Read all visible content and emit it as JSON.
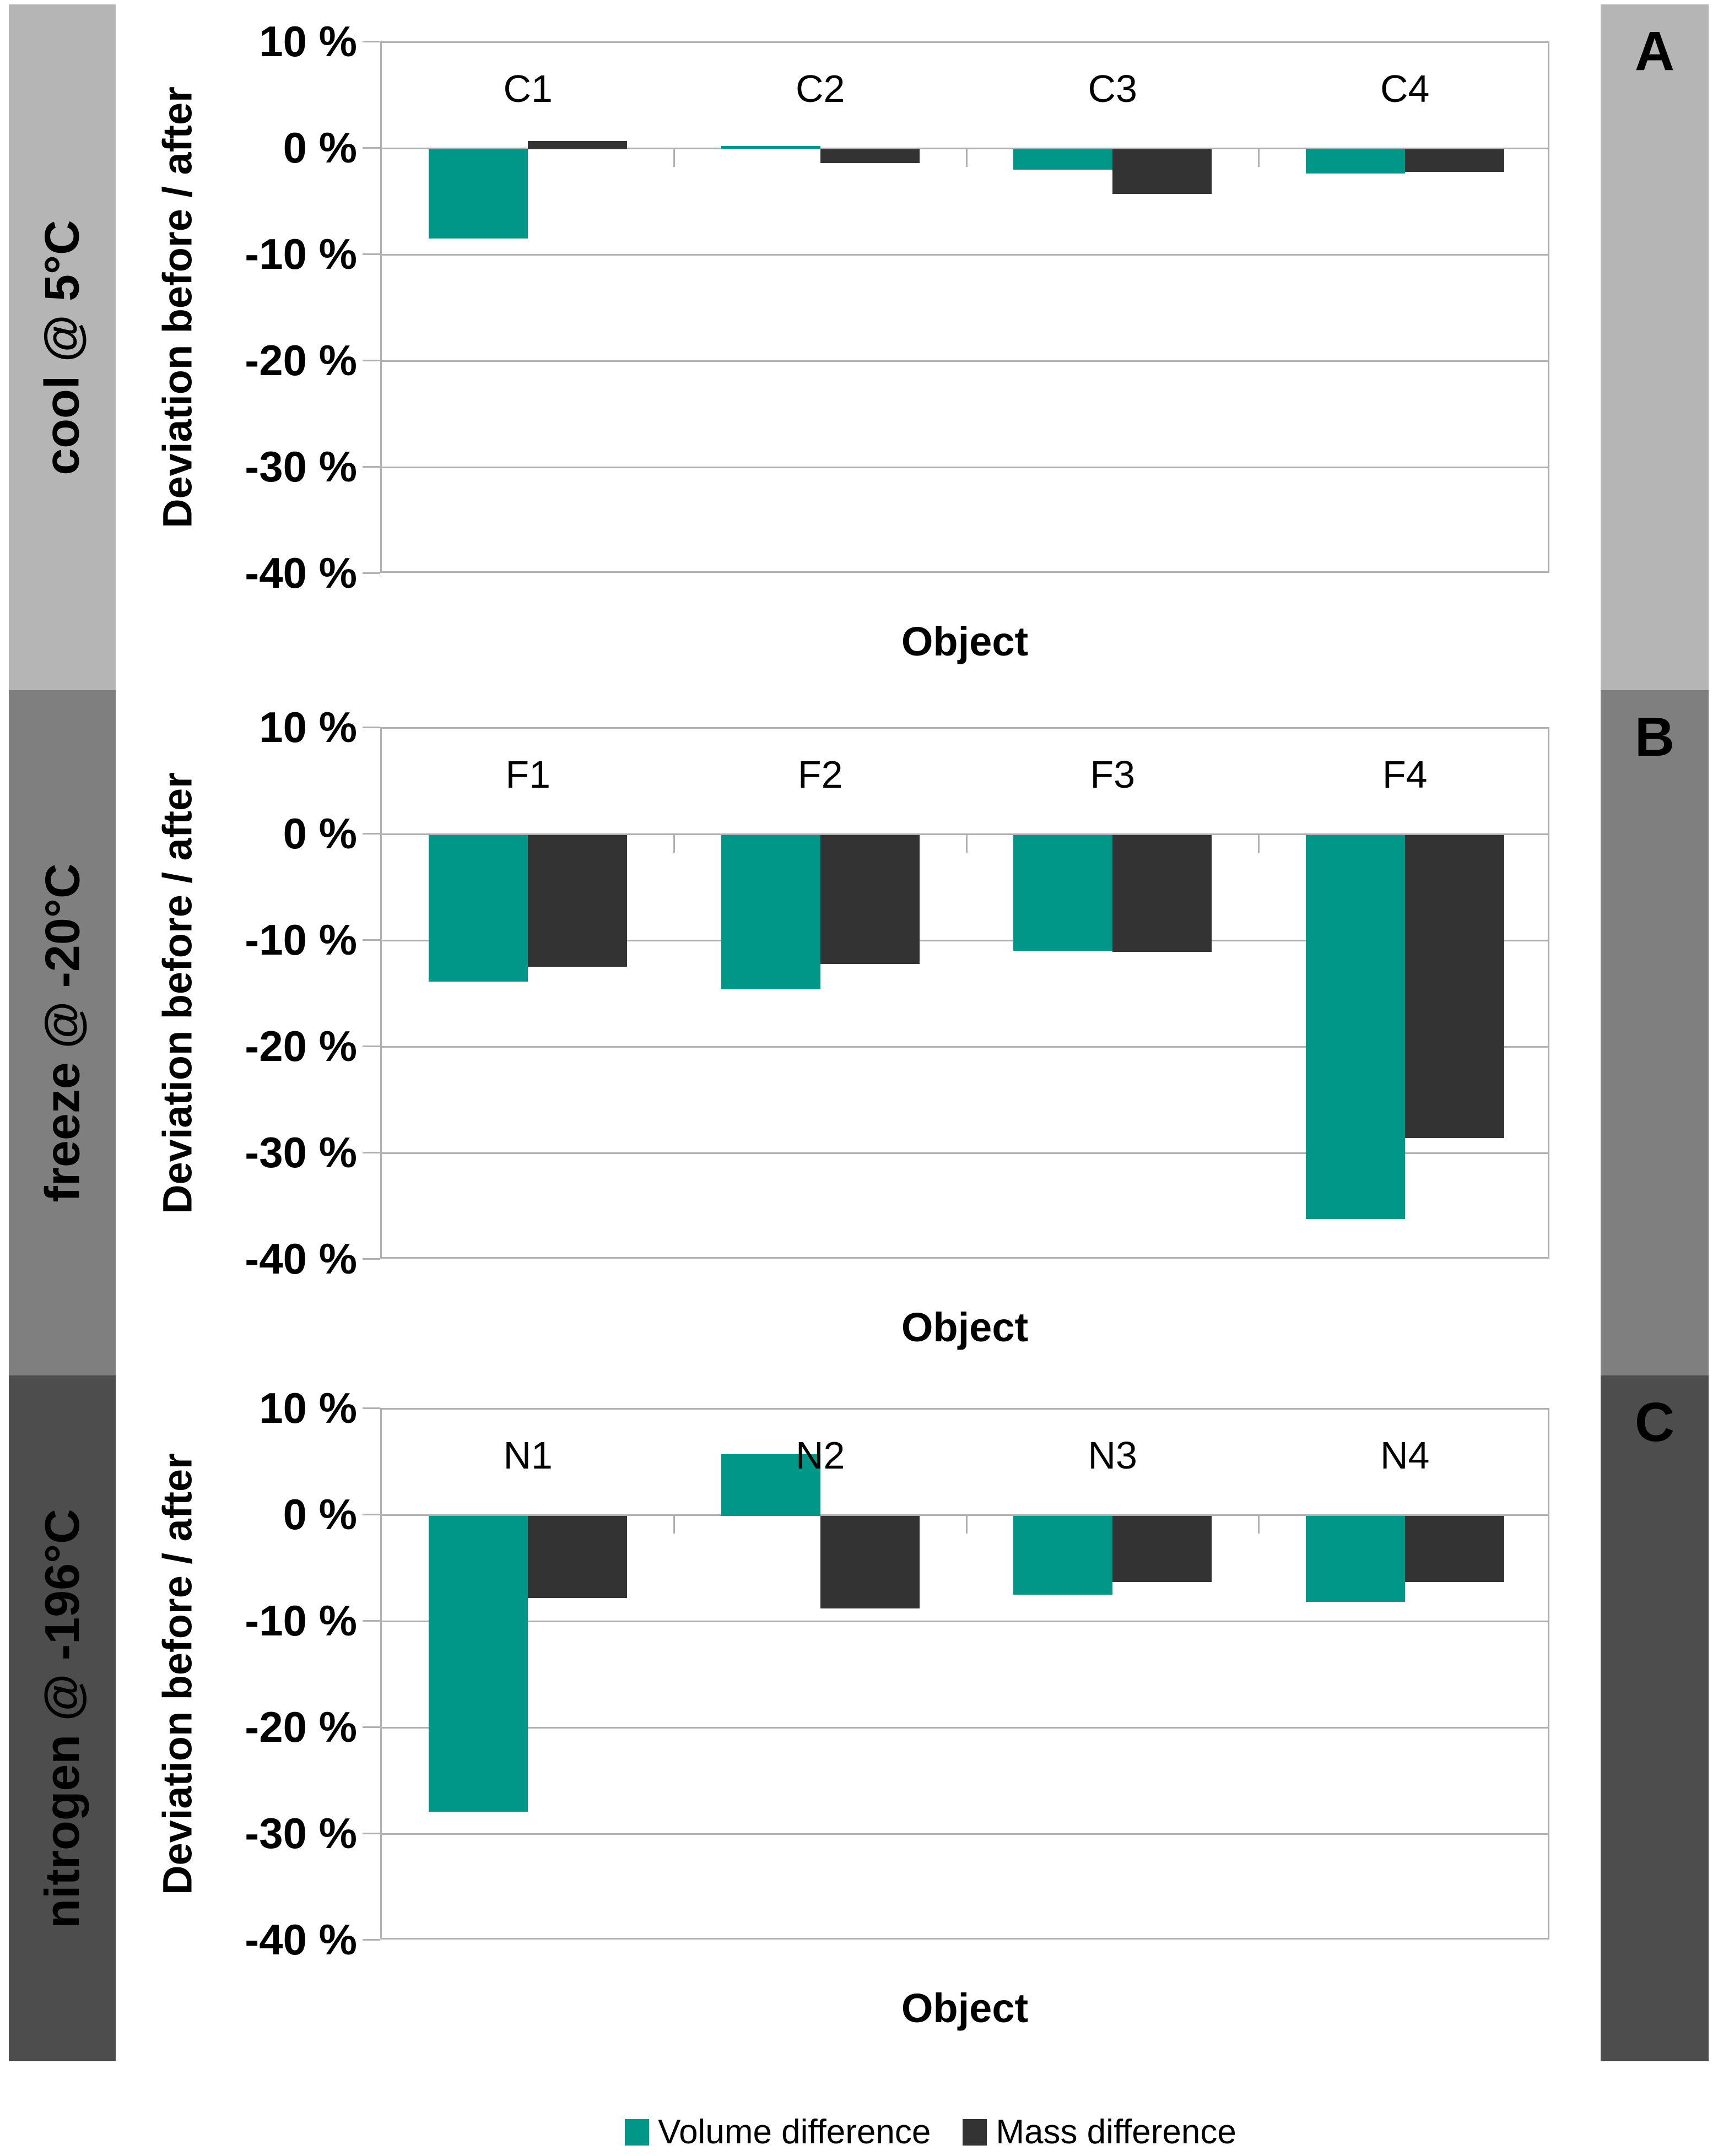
{
  "figure": {
    "type": "three-panel bar chart figure",
    "background": "#ffffff"
  },
  "colors": {
    "volume_series": "#009688",
    "mass_series": "#333333",
    "band_cool": "#b5b5b5",
    "band_freeze": "#7f7f7f",
    "band_nitrogen": "#4d4d4d",
    "gridline": "#b0b0b0",
    "text": "#000000"
  },
  "sidebar": {
    "bands": [
      {
        "label": "cool @ 5°C",
        "letter": "A",
        "color": "#b5b5b5"
      },
      {
        "label": "freeze @ -20°C",
        "letter": "B",
        "color": "#7f7f7f"
      },
      {
        "label": "nitrogen @ -196°C",
        "letter": "C",
        "color": "#4d4d4d"
      }
    ]
  },
  "axes": {
    "y_label": "Deviation before / after",
    "x_label": "Object",
    "y_tick_labels": [
      "10 %",
      "0 %",
      "-10 %",
      "-20 %",
      "-30 %",
      "-40 %"
    ],
    "y_ticks": [
      10,
      0,
      -10,
      -20,
      -30,
      -40
    ],
    "ylim": [
      -40,
      10
    ]
  },
  "legend": {
    "items": [
      {
        "label": "Volume difference",
        "color": "#009688"
      },
      {
        "label": "Mass difference",
        "color": "#333333"
      }
    ]
  },
  "chart_data": [
    {
      "type": "bar",
      "panel": "A",
      "condition": "cool @ 5°C",
      "categories": [
        "C1",
        "C2",
        "C3",
        "C4"
      ],
      "series": [
        {
          "name": "Volume difference",
          "color": "#009688",
          "values": [
            -8.4,
            0.3,
            -1.9,
            -2.3
          ]
        },
        {
          "name": "Mass difference",
          "color": "#333333",
          "values": [
            0.8,
            -1.3,
            -4.2,
            -2.1
          ]
        }
      ],
      "xlabel": "Object",
      "ylabel": "Deviation before / after",
      "ylim": [
        -40,
        10
      ],
      "y_ticks": [
        10,
        0,
        -10,
        -20,
        -30,
        -40
      ],
      "grid": true,
      "legend_position": "shared-bottom"
    },
    {
      "type": "bar",
      "panel": "B",
      "condition": "freeze @ -20°C",
      "categories": [
        "F1",
        "F2",
        "F3",
        "F4"
      ],
      "series": [
        {
          "name": "Volume difference",
          "color": "#009688",
          "values": [
            -13.8,
            -14.5,
            -10.9,
            -36.1
          ]
        },
        {
          "name": "Mass difference",
          "color": "#333333",
          "values": [
            -12.4,
            -12.1,
            -11.0,
            -28.5
          ]
        }
      ],
      "xlabel": "Object",
      "ylabel": "Deviation before / after",
      "ylim": [
        -40,
        10
      ],
      "y_ticks": [
        10,
        0,
        -10,
        -20,
        -30,
        -40
      ],
      "grid": true,
      "legend_position": "shared-bottom"
    },
    {
      "type": "bar",
      "panel": "C",
      "condition": "nitrogen @ -196°C",
      "categories": [
        "N1",
        "N2",
        "N3",
        "N4"
      ],
      "series": [
        {
          "name": "Volume difference",
          "color": "#009688",
          "values": [
            -27.8,
            5.8,
            -7.4,
            -8.1
          ]
        },
        {
          "name": "Mass difference",
          "color": "#333333",
          "values": [
            -7.7,
            -8.7,
            -6.2,
            -6.2
          ]
        }
      ],
      "xlabel": "Object",
      "ylabel": "Deviation before / after",
      "ylim": [
        -40,
        10
      ],
      "y_ticks": [
        10,
        0,
        -10,
        -20,
        -30,
        -40
      ],
      "grid": true,
      "legend_position": "shared-bottom"
    }
  ]
}
